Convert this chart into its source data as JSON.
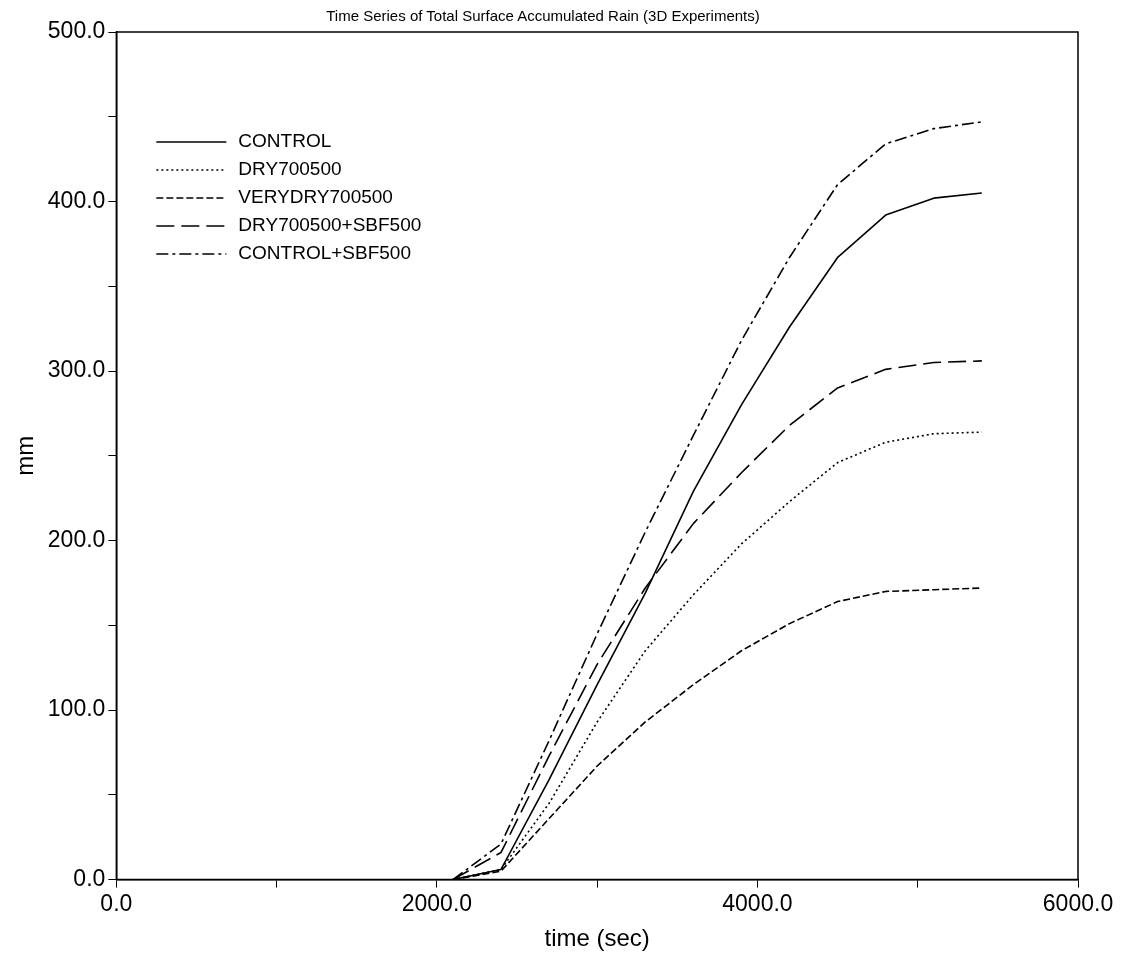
{
  "chart_data": {
    "type": "line",
    "title": "Time Series of Total Surface Accumulated Rain (3D Experiments)",
    "xlabel": "time (sec)",
    "ylabel": "mm",
    "x": [
      2100,
      2400,
      2700,
      3000,
      3300,
      3600,
      3900,
      4200,
      4500,
      4800,
      5100,
      5400
    ],
    "series": [
      {
        "name": "CONTROL",
        "color": "#000000",
        "line_style": "solid",
        "values": [
          0,
          6,
          59,
          115,
          169,
          229,
          280,
          326,
          367,
          392,
          402,
          405
        ]
      },
      {
        "name": "DRY700500",
        "color": "#000000",
        "line_style": "dotted",
        "values": [
          0,
          6,
          45,
          93,
          135,
          168,
          198,
          223,
          246,
          258,
          263,
          264
        ]
      },
      {
        "name": "VERYDRY700500",
        "color": "#000000",
        "line_style": "dashed",
        "values": [
          0,
          5,
          36,
          67,
          93,
          115,
          135,
          151,
          164,
          170,
          171,
          172
        ]
      },
      {
        "name": "DRY700500+SBF500",
        "color": "#000000",
        "line_style": "dashed",
        "values": [
          0,
          16,
          73,
          127,
          172,
          210,
          240,
          268,
          290,
          301,
          305,
          306
        ]
      },
      {
        "name": "CONTROL+SBF500",
        "color": "#000000",
        "line_style": "dashed",
        "values": [
          0,
          21,
          82,
          145,
          205,
          262,
          318,
          367,
          410,
          434,
          443,
          447
        ]
      }
    ],
    "xlim": [
      0,
      6000
    ],
    "xticks": [
      {
        "value": 0,
        "label": "0.0"
      },
      {
        "value": 1000,
        "label": null
      },
      {
        "value": 2000,
        "label": "2000.0"
      },
      {
        "value": 3000,
        "label": null
      },
      {
        "value": 4000,
        "label": "4000.0"
      },
      {
        "value": 5000,
        "label": null
      },
      {
        "value": 6000,
        "label": "6000.0"
      }
    ],
    "ylim": [
      0,
      500
    ],
    "yticks": [
      {
        "value": 0,
        "label": "0.0"
      },
      {
        "value": 50,
        "label": null
      },
      {
        "value": 100,
        "label": "100.0"
      },
      {
        "value": 150,
        "label": null
      },
      {
        "value": 200,
        "label": "200.0"
      },
      {
        "value": 250,
        "label": null
      },
      {
        "value": 300,
        "label": "300.0"
      },
      {
        "value": 350,
        "label": null
      },
      {
        "value": 400,
        "label": "400.0"
      },
      {
        "value": 450,
        "label": null
      },
      {
        "value": 500,
        "label": "500.0"
      }
    ],
    "grid": false,
    "legend": "top left",
    "marker": "none"
  }
}
